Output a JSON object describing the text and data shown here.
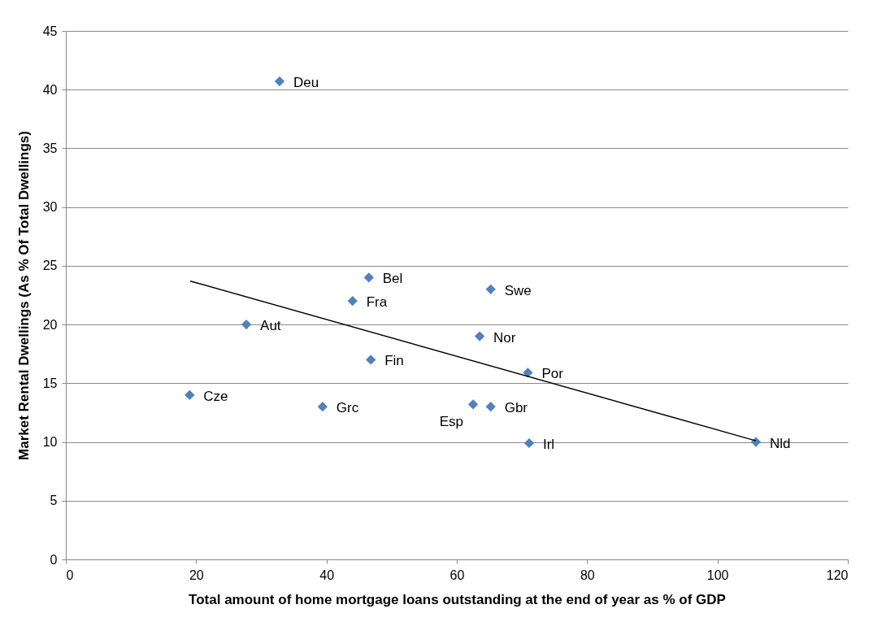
{
  "chart_data": {
    "type": "scatter",
    "xlabel": "Total amount of home mortgage loans outstanding at the end of year as % of GDP",
    "ylabel": "Market Rental Dwellings (As % Of Total Dwellings)",
    "xlim": [
      0,
      120
    ],
    "xticks": [
      0,
      20,
      40,
      60,
      80,
      100,
      120
    ],
    "ylim": [
      0,
      45
    ],
    "yticks": [
      0,
      5,
      10,
      15,
      20,
      25,
      30,
      35,
      40,
      45
    ],
    "grid": "y",
    "series": [
      {
        "color": "#4f81bd",
        "marker": "diamond",
        "x": [
          32.8,
          46.5,
          44.0,
          65.2,
          27.7,
          63.5,
          46.8,
          70.9,
          19.0,
          39.4,
          62.5,
          65.2,
          71.1,
          105.9
        ],
        "values": [
          40.7,
          24.0,
          22.0,
          23.0,
          20.0,
          19.0,
          17.0,
          15.9,
          14.0,
          13.0,
          13.2,
          13.0,
          9.9,
          10.0
        ]
      },
      {
        "type": "line",
        "color": "#000000",
        "x": [
          19.1,
          105.9
        ],
        "values": [
          23.7,
          10.1
        ]
      }
    ],
    "annotations": [
      {
        "text": "Deu",
        "x": 32.8,
        "y": 40.7
      },
      {
        "text": "Bel",
        "x": 46.5,
        "y": 24.0
      },
      {
        "text": "Fra",
        "x": 44.0,
        "y": 22.0
      },
      {
        "text": "Swe",
        "x": 65.2,
        "y": 23.0
      },
      {
        "text": "Aut",
        "x": 27.7,
        "y": 20.0
      },
      {
        "text": "Nor",
        "x": 63.5,
        "y": 19.0
      },
      {
        "text": "Fin",
        "x": 46.8,
        "y": 17.0
      },
      {
        "text": "Por",
        "x": 70.9,
        "y": 15.9
      },
      {
        "text": "Cze",
        "x": 19.0,
        "y": 14.0
      },
      {
        "text": "Grc",
        "x": 39.4,
        "y": 13.0
      },
      {
        "text": "Esp",
        "x": 62.5,
        "y": 13.2
      },
      {
        "text": "Gbr",
        "x": 65.2,
        "y": 13.0
      },
      {
        "text": "Irl",
        "x": 71.1,
        "y": 9.9
      },
      {
        "text": "Nld",
        "x": 105.9,
        "y": 10.0
      }
    ]
  }
}
